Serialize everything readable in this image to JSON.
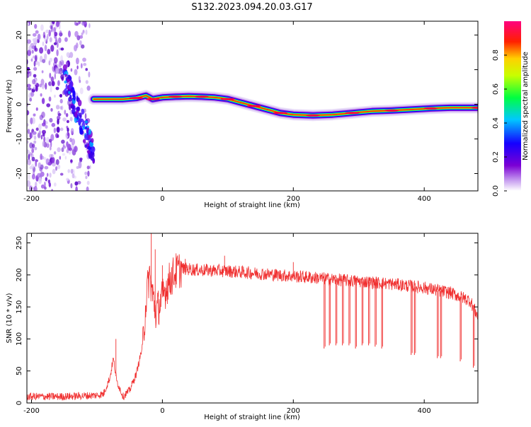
{
  "title": "S132.2023.094.20.03.G17",
  "chart_data": [
    {
      "type": "heatmap",
      "xlabel": "Height of straight line (km)",
      "ylabel": "Frequency (Hz)",
      "xlim": [
        -207,
        482
      ],
      "ylim": [
        -25,
        24
      ],
      "x_ticks": [
        -200,
        0,
        200,
        400
      ],
      "y_ticks": [
        -20,
        -10,
        0,
        10,
        20
      ],
      "ridge": {
        "x": [
          -105,
          -95,
          -80,
          -60,
          -40,
          -25,
          -15,
          0,
          20,
          40,
          60,
          80,
          100,
          120,
          140,
          160,
          180,
          200,
          230,
          260,
          290,
          320,
          350,
          380,
          410,
          440,
          482
        ],
        "freq_hz": [
          1.5,
          1.5,
          1.5,
          1.5,
          1.8,
          2.5,
          1.5,
          2.0,
          2.2,
          2.3,
          2.2,
          2.0,
          1.5,
          0.5,
          -0.5,
          -1.5,
          -2.5,
          -3.0,
          -3.2,
          -3.0,
          -2.5,
          -2.0,
          -1.8,
          -1.5,
          -1.2,
          -1.0,
          -1.0
        ]
      },
      "noise_region_x": [
        -207,
        -110
      ],
      "colorbar": {
        "label": "Normalized spectral amplitude",
        "ticks": [
          "0.0",
          "0.2",
          "0.4",
          "0.6",
          "0.8"
        ],
        "range": [
          0,
          1
        ],
        "colormap": [
          "#ffffff",
          "#7b00d4",
          "#1500ff",
          "#00c8ff",
          "#00ff40",
          "#c8ff00",
          "#ffd000",
          "#ff2000",
          "#ff0080"
        ]
      }
    },
    {
      "type": "line",
      "xlabel": "Height of straight line (km)",
      "ylabel": "SNR (10 * v/v)",
      "xlim": [
        -207,
        482
      ],
      "ylim": [
        0,
        265
      ],
      "x_ticks": [
        -200,
        0,
        200,
        400
      ],
      "y_ticks": [
        0,
        50,
        100,
        150,
        200,
        250
      ],
      "color": "#f03030",
      "series": [
        {
          "x": [
            -207,
            -150,
            -100,
            -90,
            -80,
            -75,
            -70,
            -60,
            -50,
            -40,
            -30,
            -25,
            -20,
            -16,
            -10,
            0,
            10,
            20,
            30,
            50,
            100,
            150,
            200,
            240,
            260,
            300,
            350,
            400,
            440,
            470,
            482
          ],
          "y": [
            10,
            10,
            12,
            14,
            40,
            70,
            35,
            10,
            20,
            45,
            90,
            160,
            200,
            175,
            140,
            165,
            190,
            205,
            210,
            208,
            206,
            202,
            198,
            195,
            193,
            190,
            186,
            180,
            172,
            160,
            135
          ],
          "peaks": [
            [
              -71,
              100
            ],
            [
              -17,
              265
            ],
            [
              -11,
              240
            ],
            [
              0,
              215
            ],
            [
              35,
              225
            ],
            [
              95,
              230
            ],
            [
              200,
              220
            ]
          ],
          "dropouts": [
            [
              247,
              85
            ],
            [
              255,
              90
            ],
            [
              265,
              90
            ],
            [
              275,
              90
            ],
            [
              285,
              90
            ],
            [
              295,
              85
            ],
            [
              305,
              90
            ],
            [
              315,
              90
            ],
            [
              325,
              88
            ],
            [
              335,
              85
            ],
            [
              380,
              75
            ],
            [
              385,
              75
            ],
            [
              420,
              70
            ],
            [
              425,
              70
            ],
            [
              455,
              65
            ],
            [
              475,
              55
            ]
          ]
        }
      ]
    }
  ]
}
